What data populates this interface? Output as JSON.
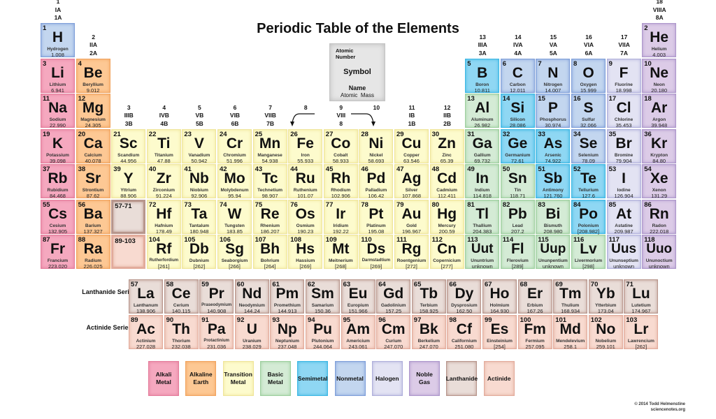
{
  "title": "Periodic Table of the Elements",
  "key": {
    "atomic_number": "Atomic Number",
    "symbol": "Symbol",
    "name": "Name",
    "mass": "Atomic  Mass"
  },
  "series_labels": {
    "lanthanide": "Lanthanide Series",
    "actinide": "Actinide Series"
  },
  "copyright": {
    "line1": "© 2014 Todd Helmenstine",
    "line2": "sciencenotes.org"
  },
  "colors": {
    "alkali": [
      "#f5a8bf",
      "#e47c9b"
    ],
    "alkaline": [
      "#fdc894",
      "#f1a45f"
    ],
    "transition": [
      "#fdfbcd",
      "#efe59a"
    ],
    "basic": [
      "#d4ebd5",
      "#9dcf9e"
    ],
    "semimetal": [
      "#8fd7f3",
      "#3db7e4"
    ],
    "nonmetal": [
      "#c3d6ef",
      "#7f9fd9"
    ],
    "halogen": [
      "#e3e3f3",
      "#afafdb"
    ],
    "noble": [
      "#dccbe7",
      "#ad97cb"
    ],
    "lanthanide": [
      "#e9ddd8",
      "#b8968c"
    ],
    "actinide": [
      "#f8dad0",
      "#e2ab9b"
    ]
  },
  "legend": [
    {
      "cat": "alkali",
      "label": "Alkali\nMetal"
    },
    {
      "cat": "alkaline",
      "label": "Alkaline\nEarth"
    },
    {
      "cat": "transition",
      "label": "Transition\nMetal"
    },
    {
      "cat": "basic",
      "label": "Basic\nMetal"
    },
    {
      "cat": "semimetal",
      "label": "Semimetal"
    },
    {
      "cat": "nonmetal",
      "label": "Nonmetal"
    },
    {
      "cat": "halogen",
      "label": "Halogen"
    },
    {
      "cat": "noble",
      "label": "Noble\nGas"
    },
    {
      "cat": "lanthanide",
      "label": "Lanthanide"
    },
    {
      "cat": "actinide",
      "label": "Actinide"
    }
  ],
  "group_headers": [
    {
      "group": 1,
      "lines": [
        "1",
        "IA",
        "1A"
      ],
      "above_period": 1
    },
    {
      "group": 2,
      "lines": [
        "2",
        "IIA",
        "2A"
      ],
      "above_period": 2
    },
    {
      "group": 3,
      "lines": [
        "3",
        "IIIB",
        "3B"
      ],
      "above_period": 4
    },
    {
      "group": 4,
      "lines": [
        "4",
        "IVB",
        "4B"
      ],
      "above_period": 4
    },
    {
      "group": 5,
      "lines": [
        "5",
        "VB",
        "5B"
      ],
      "above_period": 4
    },
    {
      "group": 6,
      "lines": [
        "6",
        "VIB",
        "6B"
      ],
      "above_period": 4
    },
    {
      "group": 7,
      "lines": [
        "7",
        "VIIB",
        "7B"
      ],
      "above_period": 4
    },
    {
      "group": 8,
      "lines": [
        "8",
        "",
        ""
      ],
      "above_period": 4
    },
    {
      "group": 9,
      "lines": [
        "9",
        "VIII",
        "8"
      ],
      "above_period": 4
    },
    {
      "group": 10,
      "lines": [
        "10",
        "",
        ""
      ],
      "above_period": 4
    },
    {
      "group": 11,
      "lines": [
        "11",
        "IB",
        "1B"
      ],
      "above_period": 4
    },
    {
      "group": 12,
      "lines": [
        "12",
        "IIB",
        "2B"
      ],
      "above_period": 4
    },
    {
      "group": 13,
      "lines": [
        "13",
        "IIIA",
        "3A"
      ],
      "above_period": 2
    },
    {
      "group": 14,
      "lines": [
        "14",
        "IVA",
        "4A"
      ],
      "above_period": 2
    },
    {
      "group": 15,
      "lines": [
        "15",
        "VA",
        "5A"
      ],
      "above_period": 2
    },
    {
      "group": 16,
      "lines": [
        "16",
        "VIA",
        "6A"
      ],
      "above_period": 2
    },
    {
      "group": 17,
      "lines": [
        "17",
        "VIIA",
        "7A"
      ],
      "above_period": 2
    },
    {
      "group": 18,
      "lines": [
        "18",
        "VIIIA",
        "8A"
      ],
      "above_period": 1
    }
  ],
  "placeholders": [
    {
      "label": "57-71",
      "period": 6,
      "group": 3,
      "cat": "lanthanide"
    },
    {
      "label": "89-103",
      "period": 7,
      "group": 3,
      "cat": "actinide"
    }
  ],
  "elements": [
    [
      1,
      "H",
      "Hydrogen",
      "1.008",
      "nonmetal",
      1,
      1
    ],
    [
      2,
      "He",
      "Helium",
      "4.003",
      "noble",
      1,
      18
    ],
    [
      3,
      "Li",
      "Lithium",
      "6.941",
      "alkali",
      2,
      1
    ],
    [
      4,
      "Be",
      "Beryllium",
      "9.012",
      "alkaline",
      2,
      2
    ],
    [
      5,
      "B",
      "Boron",
      "10.811",
      "semimetal",
      2,
      13
    ],
    [
      6,
      "C",
      "Carbon",
      "12.011",
      "nonmetal",
      2,
      14
    ],
    [
      7,
      "N",
      "Nitrogen",
      "14.007",
      "nonmetal",
      2,
      15
    ],
    [
      8,
      "O",
      "Oxygen",
      "15.999",
      "nonmetal",
      2,
      16
    ],
    [
      9,
      "F",
      "Fluorine",
      "18.998",
      "halogen",
      2,
      17
    ],
    [
      10,
      "Ne",
      "Neon",
      "20.180",
      "noble",
      2,
      18
    ],
    [
      11,
      "Na",
      "Sodium",
      "22.990",
      "alkali",
      3,
      1
    ],
    [
      12,
      "Mg",
      "Magnesium",
      "24.305",
      "alkaline",
      3,
      2
    ],
    [
      13,
      "Al",
      "Aluminum",
      "26.982",
      "basic",
      3,
      13
    ],
    [
      14,
      "Si",
      "Silicon",
      "28.086",
      "semimetal",
      3,
      14
    ],
    [
      15,
      "P",
      "Phosphorus",
      "30.974",
      "nonmetal",
      3,
      15
    ],
    [
      16,
      "S",
      "Sulfur",
      "32.066",
      "nonmetal",
      3,
      16
    ],
    [
      17,
      "Cl",
      "Chlorine",
      "35.453",
      "halogen",
      3,
      17
    ],
    [
      18,
      "Ar",
      "Argon",
      "39.948",
      "noble",
      3,
      18
    ],
    [
      19,
      "K",
      "Potassium",
      "39.098",
      "alkali",
      4,
      1
    ],
    [
      20,
      "Ca",
      "Calcium",
      "40.078",
      "alkaline",
      4,
      2
    ],
    [
      21,
      "Sc",
      "Scandium",
      "44.956",
      "transition",
      4,
      3
    ],
    [
      22,
      "Ti",
      "Titanium",
      "47.88",
      "transition",
      4,
      4
    ],
    [
      23,
      "V",
      "Vanadium",
      "50.942",
      "transition",
      4,
      5
    ],
    [
      24,
      "Cr",
      "Chromium",
      "51.996",
      "transition",
      4,
      6
    ],
    [
      25,
      "Mn",
      "Manganese",
      "54.938",
      "transition",
      4,
      7
    ],
    [
      26,
      "Fe",
      "Iron",
      "55.933",
      "transition",
      4,
      8
    ],
    [
      27,
      "Co",
      "Cobalt",
      "58.933",
      "transition",
      4,
      9
    ],
    [
      28,
      "Ni",
      "Nickel",
      "58.693",
      "transition",
      4,
      10
    ],
    [
      29,
      "Cu",
      "Copper",
      "63.546",
      "transition",
      4,
      11
    ],
    [
      30,
      "Zn",
      "Zinc",
      "65.39",
      "transition",
      4,
      12
    ],
    [
      31,
      "Ga",
      "Gallium",
      "69.732",
      "basic",
      4,
      13
    ],
    [
      32,
      "Ge",
      "Germanium",
      "72.61",
      "semimetal",
      4,
      14
    ],
    [
      33,
      "As",
      "Arsenic",
      "74.922",
      "semimetal",
      4,
      15
    ],
    [
      34,
      "Se",
      "Selenium",
      "78.09",
      "nonmetal",
      4,
      16
    ],
    [
      35,
      "Br",
      "Bromine",
      "79.904",
      "halogen",
      4,
      17
    ],
    [
      36,
      "Kr",
      "Krypton",
      "84.80",
      "noble",
      4,
      18
    ],
    [
      37,
      "Rb",
      "Rubidium",
      "84.468",
      "alkali",
      5,
      1
    ],
    [
      38,
      "Sr",
      "Strontium",
      "87.62",
      "alkaline",
      5,
      2
    ],
    [
      39,
      "Y",
      "Yttrium",
      "88.906",
      "transition",
      5,
      3
    ],
    [
      40,
      "Zr",
      "Zirconium",
      "91.224",
      "transition",
      5,
      4
    ],
    [
      41,
      "Nb",
      "Niobium",
      "92.906",
      "transition",
      5,
      5
    ],
    [
      42,
      "Mo",
      "Molybdenum",
      "95.94",
      "transition",
      5,
      6
    ],
    [
      43,
      "Tc",
      "Technetium",
      "98.907",
      "transition",
      5,
      7
    ],
    [
      44,
      "Ru",
      "Ruthenium",
      "101.07",
      "transition",
      5,
      8
    ],
    [
      45,
      "Rh",
      "Rhodium",
      "102.906",
      "transition",
      5,
      9
    ],
    [
      46,
      "Pd",
      "Palladium",
      "106.42",
      "transition",
      5,
      10
    ],
    [
      47,
      "Ag",
      "Silver",
      "107.868",
      "transition",
      5,
      11
    ],
    [
      48,
      "Cd",
      "Cadmium",
      "112.411",
      "transition",
      5,
      12
    ],
    [
      49,
      "In",
      "Indium",
      "114.818",
      "basic",
      5,
      13
    ],
    [
      50,
      "Sn",
      "Tin",
      "118.71",
      "basic",
      5,
      14
    ],
    [
      51,
      "Sb",
      "Antimony",
      "121.760",
      "semimetal",
      5,
      15
    ],
    [
      52,
      "Te",
      "Tellurium",
      "127.6",
      "semimetal",
      5,
      16
    ],
    [
      53,
      "I",
      "Iodine",
      "126.904",
      "halogen",
      5,
      17
    ],
    [
      54,
      "Xe",
      "Xenon",
      "131.29",
      "noble",
      5,
      18
    ],
    [
      55,
      "Cs",
      "Cesium",
      "132.905",
      "alkali",
      6,
      1
    ],
    [
      56,
      "Ba",
      "Barium",
      "137.327",
      "alkaline",
      6,
      2
    ],
    [
      72,
      "Hf",
      "Hafnium",
      "178.49",
      "transition",
      6,
      4
    ],
    [
      73,
      "Ta",
      "Tantalum",
      "180.948",
      "transition",
      6,
      5
    ],
    [
      74,
      "W",
      "Tungsten",
      "183.85",
      "transition",
      6,
      6
    ],
    [
      75,
      "Re",
      "Rhenium",
      "186.207",
      "transition",
      6,
      7
    ],
    [
      76,
      "Os",
      "Osmium",
      "190.23",
      "transition",
      6,
      8
    ],
    [
      77,
      "Ir",
      "Iridium",
      "192.22",
      "transition",
      6,
      9
    ],
    [
      78,
      "Pt",
      "Platinum",
      "195.08",
      "transition",
      6,
      10
    ],
    [
      79,
      "Au",
      "Gold",
      "196.967",
      "transition",
      6,
      11
    ],
    [
      80,
      "Hg",
      "Mercury",
      "200.59",
      "transition",
      6,
      12
    ],
    [
      81,
      "Tl",
      "Thallium",
      "204.383",
      "basic",
      6,
      13
    ],
    [
      82,
      "Pb",
      "Lead",
      "207.2",
      "basic",
      6,
      14
    ],
    [
      83,
      "Bi",
      "Bismuth",
      "208.980",
      "basic",
      6,
      15
    ],
    [
      84,
      "Po",
      "Polonium",
      "[208.982]",
      "semimetal",
      6,
      16
    ],
    [
      85,
      "At",
      "Astatine",
      "209.987",
      "halogen",
      6,
      17
    ],
    [
      86,
      "Rn",
      "Radon",
      "222.018",
      "noble",
      6,
      18
    ],
    [
      87,
      "Fr",
      "Francium",
      "223.020",
      "alkali",
      7,
      1
    ],
    [
      88,
      "Ra",
      "Radium",
      "226.025",
      "alkaline",
      7,
      2
    ],
    [
      104,
      "Rf",
      "Rutherfordium",
      "[261]",
      "transition",
      7,
      4
    ],
    [
      105,
      "Db",
      "Dubnium",
      "[262]",
      "transition",
      7,
      5
    ],
    [
      106,
      "Sg",
      "Seaborgium",
      "[266]",
      "transition",
      7,
      6
    ],
    [
      107,
      "Bh",
      "Bohrium",
      "[264]",
      "transition",
      7,
      7
    ],
    [
      108,
      "Hs",
      "Hassium",
      "[269]",
      "transition",
      7,
      8
    ],
    [
      109,
      "Mt",
      "Meitnerium",
      "[268]",
      "transition",
      7,
      9
    ],
    [
      110,
      "Ds",
      "Darmstadtium",
      "[269]",
      "transition",
      7,
      10
    ],
    [
      111,
      "Rg",
      "Roentgenium",
      "[272]",
      "transition",
      7,
      11
    ],
    [
      112,
      "Cn",
      "Copernicium",
      "[277]",
      "transition",
      7,
      12
    ],
    [
      113,
      "Uut",
      "Ununtrium",
      "unknown",
      "basic",
      7,
      13
    ],
    [
      114,
      "Fl",
      "Flerovium",
      "[289]",
      "basic",
      7,
      14
    ],
    [
      115,
      "Uup",
      "Ununpentium",
      "unknown",
      "basic",
      7,
      15
    ],
    [
      116,
      "Lv",
      "Livermorium",
      "[298]",
      "basic",
      7,
      16
    ],
    [
      117,
      "Uus",
      "Ununseptium",
      "unknown",
      "halogen",
      7,
      17
    ],
    [
      118,
      "Uuo",
      "Ununoctium",
      "unknown",
      "noble",
      7,
      18
    ]
  ],
  "lanthanides": [
    [
      57,
      "La",
      "Lanthanum",
      "138.906"
    ],
    [
      58,
      "Ce",
      "Cerium",
      "140.115"
    ],
    [
      59,
      "Pr",
      "Praseodymium",
      "140.908"
    ],
    [
      60,
      "Nd",
      "Neodymium",
      "144.24"
    ],
    [
      61,
      "Pm",
      "Promethium",
      "144.913"
    ],
    [
      62,
      "Sm",
      "Samarium",
      "150.36"
    ],
    [
      63,
      "Eu",
      "Europium",
      "151.966"
    ],
    [
      64,
      "Gd",
      "Gadolinium",
      "157.25"
    ],
    [
      65,
      "Tb",
      "Terbium",
      "158.925"
    ],
    [
      66,
      "Dy",
      "Dysprosium",
      "162.50"
    ],
    [
      67,
      "Ho",
      "Holmium",
      "164.930"
    ],
    [
      68,
      "Er",
      "Erbium",
      "167.26"
    ],
    [
      69,
      "Tm",
      "Thulium",
      "168.934"
    ],
    [
      70,
      "Yb",
      "Ytterbium",
      "173.04"
    ],
    [
      71,
      "Lu",
      "Lutetium",
      "174.967"
    ]
  ],
  "actinides": [
    [
      89,
      "Ac",
      "Actinium",
      "227.028"
    ],
    [
      90,
      "Th",
      "Thorium",
      "232.038"
    ],
    [
      91,
      "Pa",
      "Protactinium",
      "231.036"
    ],
    [
      92,
      "U",
      "Uranium",
      "238.029"
    ],
    [
      93,
      "Np",
      "Neptunium",
      "237.048"
    ],
    [
      94,
      "Pu",
      "Plutonium",
      "244.064"
    ],
    [
      95,
      "Am",
      "Americium",
      "243.061"
    ],
    [
      96,
      "Cm",
      "Curium",
      "247.070"
    ],
    [
      97,
      "Bk",
      "Berkelium",
      "247.070"
    ],
    [
      98,
      "Cf",
      "Californium",
      "251.080"
    ],
    [
      99,
      "Es",
      "Einsteinium",
      "[254]"
    ],
    [
      100,
      "Fm",
      "Fermium",
      "257.095"
    ],
    [
      101,
      "Md",
      "Mendelevium",
      "258.1"
    ],
    [
      102,
      "No",
      "Nobelium",
      "259.101"
    ],
    [
      103,
      "Lr",
      "Lawrencium",
      "[262]"
    ]
  ]
}
